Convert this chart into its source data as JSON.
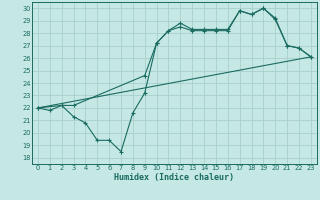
{
  "xlabel": "Humidex (Indice chaleur)",
  "bg_color": "#c5e8e5",
  "grid_color": "#a8d0cc",
  "line_color": "#1a6b60",
  "xlim": [
    -0.5,
    23.5
  ],
  "ylim": [
    17.5,
    30.5
  ],
  "yticks": [
    18,
    19,
    20,
    21,
    22,
    23,
    24,
    25,
    26,
    27,
    28,
    29,
    30
  ],
  "xticks": [
    0,
    1,
    2,
    3,
    4,
    5,
    6,
    7,
    8,
    9,
    10,
    11,
    12,
    13,
    14,
    15,
    16,
    17,
    18,
    19,
    20,
    21,
    22,
    23
  ],
  "line1_x": [
    0,
    1,
    2,
    3,
    4,
    5,
    6,
    7,
    8,
    9,
    10,
    11,
    12,
    13,
    14,
    15,
    16,
    17,
    18,
    19,
    20,
    21,
    22,
    23
  ],
  "line1_y": [
    22.0,
    21.8,
    22.2,
    21.3,
    20.8,
    19.4,
    19.4,
    18.5,
    21.6,
    23.2,
    27.2,
    28.2,
    28.5,
    28.2,
    28.2,
    28.2,
    28.2,
    29.8,
    29.5,
    30.0,
    29.1,
    27.0,
    26.8,
    26.1
  ],
  "line2_x": [
    0,
    2,
    3,
    9,
    10,
    11,
    12,
    13,
    14,
    15,
    16,
    17,
    18,
    19,
    20,
    21,
    22,
    23
  ],
  "line2_y": [
    22.0,
    22.2,
    22.2,
    24.6,
    27.2,
    28.2,
    28.8,
    28.3,
    28.3,
    28.3,
    28.3,
    29.8,
    29.5,
    30.0,
    29.2,
    27.0,
    26.8,
    26.1
  ],
  "line3_x": [
    0,
    23
  ],
  "line3_y": [
    22.0,
    26.1
  ]
}
